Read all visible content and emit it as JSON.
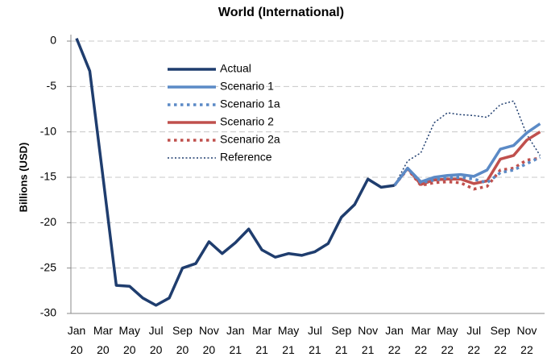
{
  "chart_data": {
    "type": "line",
    "title": "World (International)",
    "ylabel": "Billions (USD)",
    "categories": [
      "Jan 20",
      null,
      "Mar 20",
      null,
      "May 20",
      null,
      "Jul 20",
      null,
      "Sep 20",
      null,
      "Nov 20",
      null,
      "Jan 21",
      null,
      "Mar 21",
      null,
      "May 21",
      null,
      "Jul 21",
      null,
      "Sep 21",
      null,
      "Nov 21",
      null,
      "Jan 22",
      null,
      "Mar 22",
      null,
      "May 22",
      null,
      "Jul 22",
      null,
      "Sep 22",
      null,
      "Nov 22",
      null
    ],
    "ylim": [
      -30,
      0
    ],
    "yticks": [
      0,
      -5,
      -10,
      -15,
      -20,
      -25,
      -30
    ],
    "grid": true,
    "legend": "upper center",
    "series": [
      {
        "name": "Actual",
        "color": "#1f3d6e",
        "style": "solid",
        "linewidth": 3.5,
        "values": [
          0.3,
          -3.3,
          -15,
          -26.9,
          -27,
          -28.3,
          -29.1,
          -28.3,
          -25,
          -24.5,
          -22.1,
          -23.4,
          -22.2,
          -20.7,
          -23,
          -23.8,
          -23.4,
          -23.6,
          -23.2,
          -22.3,
          -19.4,
          -18,
          -15.2,
          -16.1,
          -15.9,
          null,
          null,
          null,
          null,
          null,
          null,
          null,
          null,
          null,
          null,
          null
        ]
      },
      {
        "name": "Scenario 1",
        "color": "#5b8ac6",
        "style": "solid",
        "linewidth": 3.5,
        "values": [
          null,
          null,
          null,
          null,
          null,
          null,
          null,
          null,
          null,
          null,
          null,
          null,
          null,
          null,
          null,
          null,
          null,
          null,
          null,
          null,
          null,
          null,
          null,
          null,
          -15.9,
          -14,
          -15.5,
          -15,
          -14.8,
          -14.7,
          -14.9,
          -14.2,
          -11.9,
          -11.5,
          -10.1,
          -9.1
        ]
      },
      {
        "name": "Scenario 1a",
        "color": "#5b8ac6",
        "style": "dotted",
        "linewidth": 3.5,
        "values": [
          null,
          null,
          null,
          null,
          null,
          null,
          null,
          null,
          null,
          null,
          null,
          null,
          null,
          null,
          null,
          null,
          null,
          null,
          null,
          null,
          null,
          null,
          null,
          null,
          -15.9,
          -14,
          -15.6,
          -15.3,
          -15.1,
          -15,
          -15.2,
          -15.6,
          -14.5,
          -14.2,
          -13.5,
          -12.8
        ]
      },
      {
        "name": "Scenario 2",
        "color": "#c0504d",
        "style": "solid",
        "linewidth": 3.5,
        "values": [
          null,
          null,
          null,
          null,
          null,
          null,
          null,
          null,
          null,
          null,
          null,
          null,
          null,
          null,
          null,
          null,
          null,
          null,
          null,
          null,
          null,
          null,
          null,
          null,
          -15.9,
          -14,
          -15.8,
          -15.3,
          -15.2,
          -15.2,
          -15.7,
          -15.4,
          -13,
          -12.6,
          -10.9,
          -10
        ]
      },
      {
        "name": "Scenario 2a",
        "color": "#c0504d",
        "style": "dotted",
        "linewidth": 3.5,
        "values": [
          null,
          null,
          null,
          null,
          null,
          null,
          null,
          null,
          null,
          null,
          null,
          null,
          null,
          null,
          null,
          null,
          null,
          null,
          null,
          null,
          null,
          null,
          null,
          null,
          -15.9,
          -14.1,
          -15.9,
          -15.6,
          -15.5,
          -15.6,
          -16.3,
          -16,
          -14.2,
          -14,
          -13.1,
          -12.9
        ]
      },
      {
        "name": "Reference",
        "color": "#1f3d6e",
        "style": "dotted",
        "linewidth": 1.5,
        "values": [
          null,
          null,
          null,
          null,
          null,
          null,
          null,
          null,
          null,
          null,
          null,
          null,
          null,
          null,
          null,
          null,
          null,
          null,
          null,
          null,
          null,
          null,
          null,
          null,
          -15.9,
          -13.2,
          -12.3,
          -9,
          -7.9,
          -8.1,
          -8.2,
          -8.4,
          -7,
          -6.6,
          -10.3,
          -12.6
        ]
      }
    ]
  }
}
